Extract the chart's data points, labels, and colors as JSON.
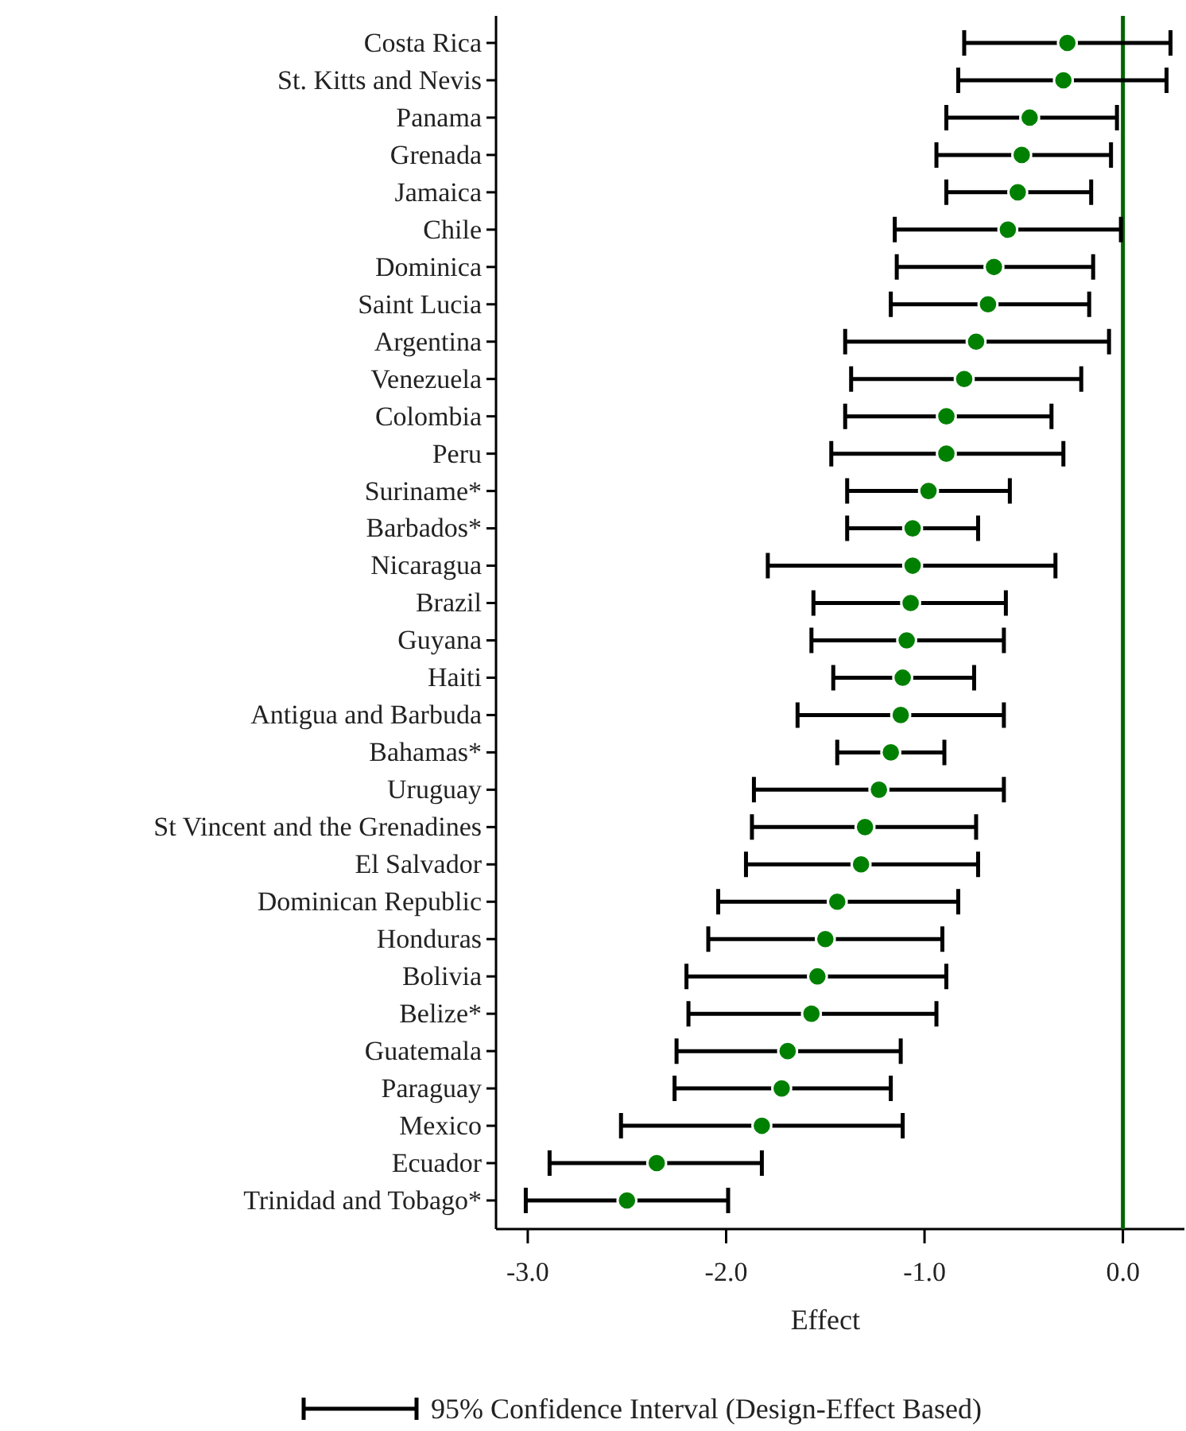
{
  "chart_data": {
    "type": "scatter",
    "orientation": "horizontal",
    "xlabel": "Effect",
    "categories": [
      "Costa Rica",
      "St. Kitts and Nevis",
      "Panama",
      "Grenada",
      "Jamaica",
      "Chile",
      "Dominica",
      "Saint Lucia",
      "Argentina",
      "Venezuela",
      "Colombia",
      "Peru",
      "Suriname*",
      "Barbados*",
      "Nicaragua",
      "Brazil",
      "Guyana",
      "Haiti",
      "Antigua and Barbuda",
      "Bahamas*",
      "Uruguay",
      "St Vincent and the Grenadines",
      "El Salvador",
      "Dominican Republic",
      "Honduras",
      "Bolivia",
      "Belize*",
      "Guatemala",
      "Paraguay",
      "Mexico",
      "Ecuador",
      "Trinidad and Tobago*"
    ],
    "series": [
      {
        "color": "#008000",
        "values": [
          -0.28,
          -0.3,
          -0.47,
          -0.51,
          -0.53,
          -0.58,
          -0.65,
          -0.68,
          -0.74,
          -0.8,
          -0.89,
          -0.89,
          -0.98,
          -1.06,
          -1.06,
          -1.07,
          -1.09,
          -1.11,
          -1.12,
          -1.17,
          -1.23,
          -1.3,
          -1.32,
          -1.44,
          -1.5,
          -1.54,
          -1.57,
          -1.69,
          -1.72,
          -1.82,
          -2.35,
          -2.5
        ],
        "errors": [
          [
            -0.8,
            0.24
          ],
          [
            -0.83,
            0.22
          ],
          [
            -0.89,
            -0.03
          ],
          [
            -0.94,
            -0.06
          ],
          [
            -0.89,
            -0.16
          ],
          [
            -1.15,
            -0.01
          ],
          [
            -1.14,
            -0.15
          ],
          [
            -1.17,
            -0.17
          ],
          [
            -1.4,
            -0.07
          ],
          [
            -1.37,
            -0.21
          ],
          [
            -1.4,
            -0.36
          ],
          [
            -1.47,
            -0.3
          ],
          [
            -1.39,
            -0.57
          ],
          [
            -1.39,
            -0.73
          ],
          [
            -1.79,
            -0.34
          ],
          [
            -1.56,
            -0.59
          ],
          [
            -1.57,
            -0.6
          ],
          [
            -1.46,
            -0.75
          ],
          [
            -1.64,
            -0.6
          ],
          [
            -1.44,
            -0.9
          ],
          [
            -1.86,
            -0.6
          ],
          [
            -1.87,
            -0.74
          ],
          [
            -1.9,
            -0.73
          ],
          [
            -2.04,
            -0.83
          ],
          [
            -2.09,
            -0.91
          ],
          [
            -2.2,
            -0.89
          ],
          [
            -2.19,
            -0.94
          ],
          [
            -2.25,
            -1.12
          ],
          [
            -2.26,
            -1.17
          ],
          [
            -2.53,
            -1.11
          ],
          [
            -2.89,
            -1.82
          ],
          [
            -3.01,
            -1.99
          ]
        ]
      }
    ],
    "xlim": [
      -3.16,
      0.31
    ],
    "xticks": [
      {
        "value": -3,
        "label": "-3.0"
      },
      {
        "value": -2,
        "label": "-2.0"
      },
      {
        "value": -1,
        "label": "-1.0"
      },
      {
        "value": 0,
        "label": "0.0"
      }
    ],
    "marker": "circle",
    "ref_lines": [
      {
        "axis": "x",
        "value": 0,
        "color": "#006400"
      }
    ],
    "annotations": [
      "95% Confidence Interval (Design-Effect Based)"
    ]
  }
}
